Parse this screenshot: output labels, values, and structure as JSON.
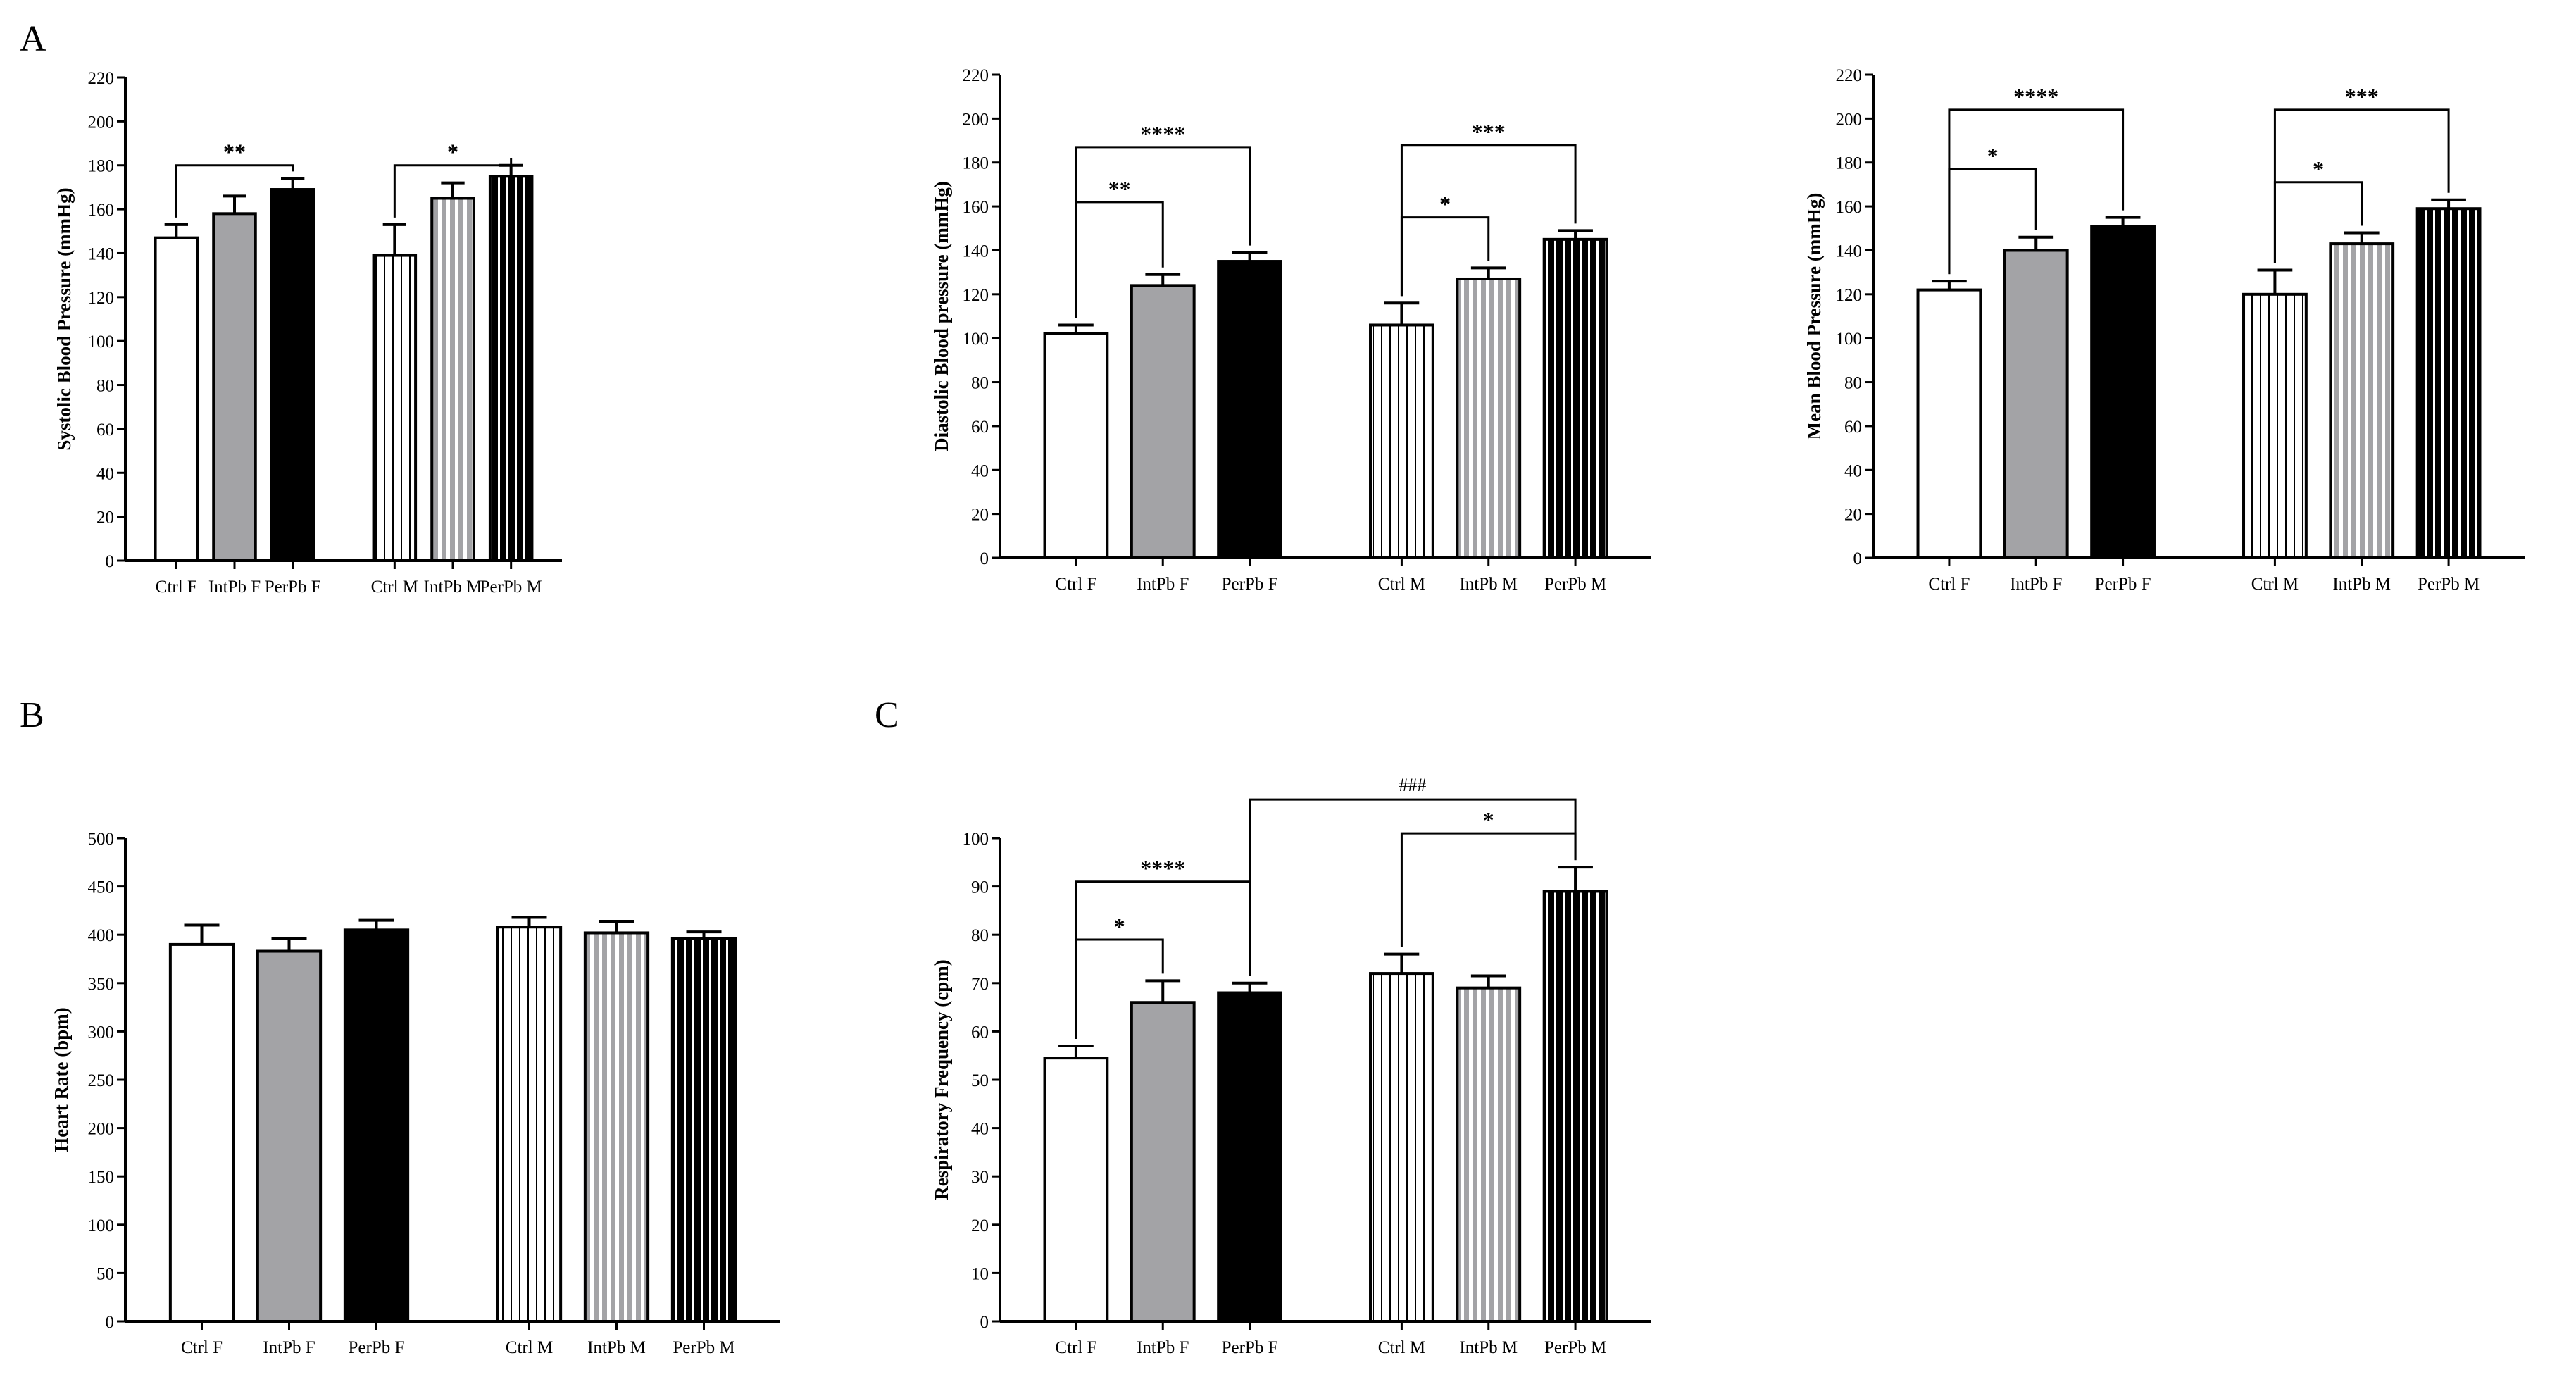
{
  "panel_labels": [
    "A",
    "B",
    "C"
  ],
  "colors": {
    "white": "#ffffff",
    "gray": "#a3a3a6",
    "black": "#000000",
    "axis": "#000000"
  },
  "chart_data": [
    {
      "id": "systolic",
      "panel": "A",
      "type": "bar",
      "ylabel": "Systolic Blood Pressure (mmHg)",
      "ylim": [
        0,
        220
      ],
      "yticks": [
        0,
        20,
        40,
        60,
        80,
        100,
        120,
        140,
        160,
        180,
        200,
        220
      ],
      "categories": [
        "Ctrl F",
        "IntPb F",
        "PerPb F",
        "Ctrl M",
        "IntPb M",
        "PerPb M"
      ],
      "styles": [
        "white",
        "gray",
        "black",
        "white-striped",
        "gray-striped",
        "black-striped"
      ],
      "values": [
        147,
        158,
        169,
        139,
        165,
        175
      ],
      "errors": [
        6,
        8,
        5,
        14,
        7,
        5
      ],
      "significance": [
        {
          "from": 0,
          "to": 2,
          "label": "**",
          "level": 180
        },
        {
          "from": 3,
          "to": 5,
          "label": "*",
          "level": 180
        }
      ]
    },
    {
      "id": "diastolic",
      "panel": "A",
      "type": "bar",
      "ylabel": "Diastolic Blood pressure (mmHg)",
      "ylim": [
        0,
        220
      ],
      "yticks": [
        0,
        20,
        40,
        60,
        80,
        100,
        120,
        140,
        160,
        180,
        200,
        220
      ],
      "categories": [
        "Ctrl F",
        "IntPb F",
        "PerPb F",
        "Ctrl M",
        "IntPb M",
        "PerPb M"
      ],
      "styles": [
        "white",
        "gray",
        "black",
        "white-striped",
        "gray-striped",
        "black-striped"
      ],
      "values": [
        102,
        124,
        135,
        106,
        127,
        145
      ],
      "errors": [
        4,
        5,
        4,
        10,
        5,
        4
      ],
      "significance": [
        {
          "from": 0,
          "to": 1,
          "label": "**",
          "level": 162
        },
        {
          "from": 0,
          "to": 2,
          "label": "****",
          "level": 187
        },
        {
          "from": 3,
          "to": 4,
          "label": "*",
          "level": 155
        },
        {
          "from": 3,
          "to": 5,
          "label": "***",
          "level": 188
        }
      ]
    },
    {
      "id": "mean",
      "panel": "A",
      "type": "bar",
      "ylabel": "Mean Blood Pressure (mmHg)",
      "ylim": [
        0,
        220
      ],
      "yticks": [
        0,
        20,
        40,
        60,
        80,
        100,
        120,
        140,
        160,
        180,
        200,
        220
      ],
      "categories": [
        "Ctrl F",
        "IntPb F",
        "PerPb F",
        "Ctrl M",
        "IntPb M",
        "PerPb M"
      ],
      "styles": [
        "white",
        "gray",
        "black",
        "white-striped",
        "gray-striped",
        "black-striped"
      ],
      "values": [
        122,
        140,
        151,
        120,
        143,
        159
      ],
      "errors": [
        4,
        6,
        4,
        11,
        5,
        4
      ],
      "significance": [
        {
          "from": 0,
          "to": 1,
          "label": "*",
          "level": 177
        },
        {
          "from": 0,
          "to": 2,
          "label": "****",
          "level": 204
        },
        {
          "from": 3,
          "to": 4,
          "label": "*",
          "level": 171
        },
        {
          "from": 3,
          "to": 5,
          "label": "***",
          "level": 204
        }
      ]
    },
    {
      "id": "heart-rate",
      "panel": "B",
      "type": "bar",
      "ylabel": "Heart Rate (bpm)",
      "ylim": [
        0,
        500
      ],
      "yticks": [
        0,
        50,
        100,
        150,
        200,
        250,
        300,
        350,
        400,
        450,
        500
      ],
      "categories": [
        "Ctrl F",
        "IntPb F",
        "PerPb F",
        "Ctrl M",
        "IntPb M",
        "PerPb M"
      ],
      "styles": [
        "white",
        "gray",
        "black",
        "white-striped",
        "gray-striped",
        "black-striped"
      ],
      "values": [
        390,
        383,
        405,
        408,
        402,
        396
      ],
      "errors": [
        20,
        13,
        10,
        10,
        12,
        7
      ],
      "significance": []
    },
    {
      "id": "respiratory",
      "panel": "C",
      "type": "bar",
      "ylabel": "Respiratory Frequency (cpm)",
      "ylim": [
        0,
        100
      ],
      "yticks": [
        0,
        10,
        20,
        30,
        40,
        50,
        60,
        70,
        80,
        90,
        100
      ],
      "categories": [
        "Ctrl F",
        "IntPb F",
        "PerPb F",
        "Ctrl M",
        "IntPb M",
        "PerPb M"
      ],
      "styles": [
        "white",
        "gray",
        "black",
        "white-striped",
        "gray-striped",
        "black-striped"
      ],
      "values": [
        54.5,
        66,
        68,
        72,
        69,
        89
      ],
      "errors": [
        2.5,
        4.5,
        2,
        4,
        2.5,
        5
      ],
      "significance": [
        {
          "from": 0,
          "to": 1,
          "label": "*",
          "level": 79
        },
        {
          "from": 0,
          "to": 2,
          "label": "****",
          "level": 91
        },
        {
          "from": 3,
          "to": 5,
          "label": "*",
          "level": 101
        },
        {
          "from": 2,
          "to": 5,
          "label": "###",
          "level": 108
        }
      ]
    }
  ]
}
